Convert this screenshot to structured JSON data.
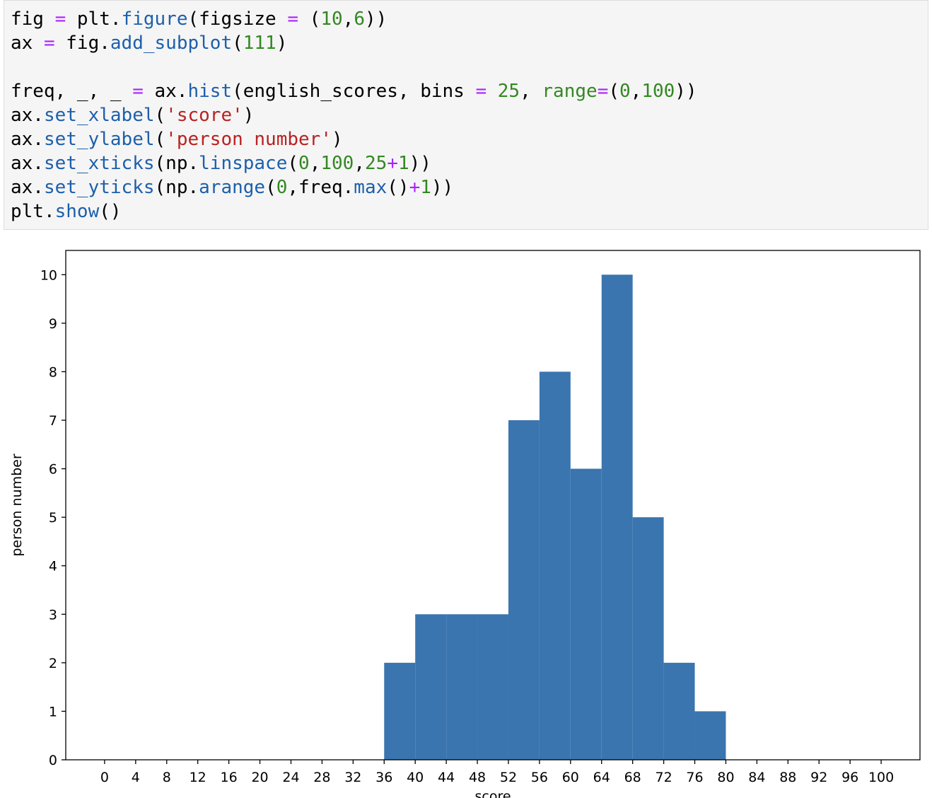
{
  "code": {
    "lines": [
      [
        "fig ",
        "=",
        " plt.",
        "figure",
        "(figsize ",
        "=",
        " (",
        "10",
        ",",
        "6",
        "))"
      ],
      [
        "ax ",
        "=",
        " fig.",
        "add_subplot",
        "(",
        "111",
        ")"
      ],
      [],
      [
        "freq, _, _ ",
        "=",
        " ax.",
        "hist",
        "(english_scores, bins ",
        "=",
        " ",
        "25",
        ", ",
        "range",
        "=",
        "(",
        "0",
        ",",
        "100",
        "))"
      ],
      [
        "ax.",
        "set_xlabel",
        "(",
        "'score'",
        ")"
      ],
      [
        "ax.",
        "set_ylabel",
        "(",
        "'person number'",
        ")"
      ],
      [
        "ax.",
        "set_xticks",
        "(np.",
        "linspace",
        "(",
        "0",
        ",",
        "100",
        ",",
        "25",
        "+",
        "1",
        "))"
      ],
      [
        "ax.",
        "set_yticks",
        "(np.",
        "arange",
        "(",
        "0",
        ",freq.",
        "max",
        "()",
        "+",
        "1",
        "))"
      ],
      [
        "plt.",
        "show",
        "()"
      ]
    ]
  },
  "chart_data": {
    "type": "histogram",
    "xlabel": "score",
    "ylabel": "person number",
    "bins": [
      0,
      4,
      8,
      12,
      16,
      20,
      24,
      28,
      32,
      36,
      40,
      44,
      48,
      52,
      56,
      60,
      64,
      68,
      72,
      76,
      80,
      84,
      88,
      92,
      96,
      100
    ],
    "values": [
      0,
      0,
      0,
      0,
      0,
      0,
      0,
      0,
      0,
      2,
      3,
      3,
      3,
      7,
      8,
      6,
      10,
      5,
      2,
      1,
      0,
      0,
      0,
      0,
      0
    ],
    "color": "#3a75af",
    "xlim": [
      -5,
      105
    ],
    "ylim": [
      0,
      10.5
    ],
    "xticks": [
      0,
      4,
      8,
      12,
      16,
      20,
      24,
      28,
      32,
      36,
      40,
      44,
      48,
      52,
      56,
      60,
      64,
      68,
      72,
      76,
      80,
      84,
      88,
      92,
      96,
      100
    ],
    "yticks": [
      0,
      1,
      2,
      3,
      4,
      5,
      6,
      7,
      8,
      9,
      10
    ]
  }
}
